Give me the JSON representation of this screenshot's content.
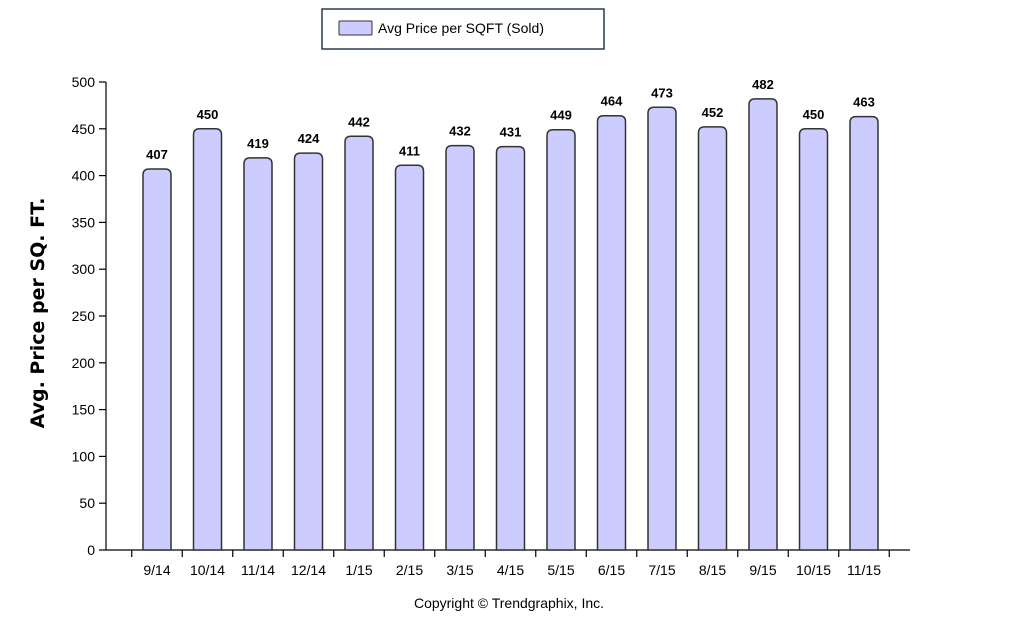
{
  "chart_data": {
    "type": "bar",
    "categories": [
      "9/14",
      "10/14",
      "11/14",
      "12/14",
      "1/15",
      "2/15",
      "3/15",
      "4/15",
      "5/15",
      "6/15",
      "7/15",
      "8/15",
      "9/15",
      "10/15",
      "11/15"
    ],
    "series": [
      {
        "name": "Avg Price per SQFT (Sold)",
        "values": [
          407,
          450,
          419,
          424,
          442,
          411,
          432,
          431,
          449,
          464,
          473,
          452,
          482,
          450,
          463
        ]
      }
    ],
    "ylabel": "Avg. Price per SQ. FT.",
    "xlabel": "",
    "ylim": [
      0,
      500
    ],
    "yticks": [
      0,
      50,
      100,
      150,
      200,
      250,
      300,
      350,
      400,
      450,
      500
    ],
    "grid": false,
    "legend_position": "top-center",
    "data_labels": true
  },
  "footer": "Copyright © Trendgraphix, Inc.",
  "colors": {
    "bar_fill": "#ccccff",
    "bar_stroke": "#333333",
    "axis": "#000000",
    "legend_border": "#2a3a4a"
  }
}
